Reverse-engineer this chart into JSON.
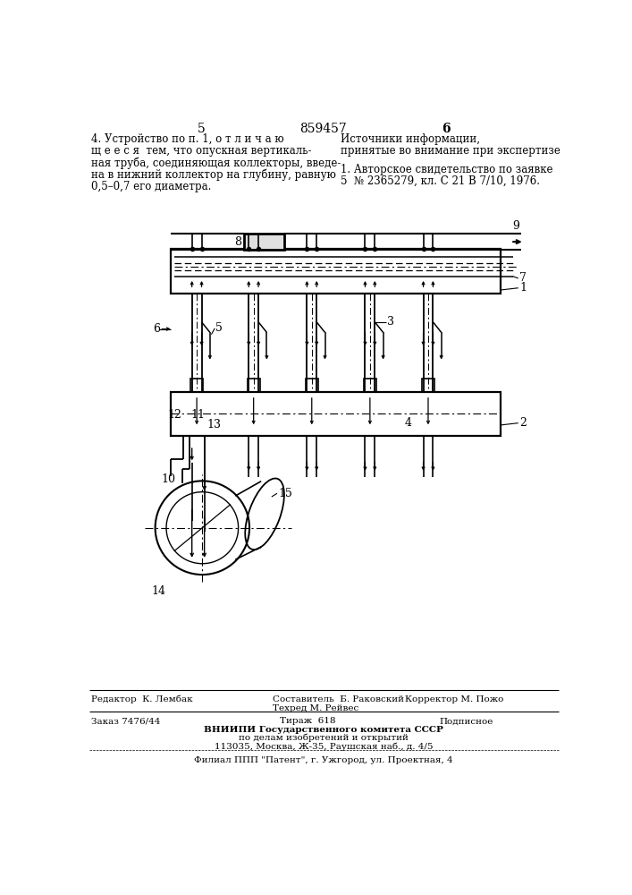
{
  "bg_color": "#ffffff",
  "line_color": "#000000",
  "page_left": "5",
  "page_center": "859457",
  "page_right": "6",
  "left_text": [
    "4. Устройство по п. 1, о т л и ч а ю",
    "щ е е с я  тем, что опускная вертикаль-",
    "ная труба, соединяющая коллекторы, введе-",
    "на в нижний коллектор на глубину, равную",
    "0,5–0,7 его диаметра."
  ],
  "right_title": "Источники информации,",
  "right_subtitle": "принятые во внимание при экспертизе",
  "right_body": [
    "1. Авторское свидетельство по заявке",
    "5  № 2365279, кл. С 21 В 7/10, 1976."
  ],
  "editor_line": "Редактор  К. Лембак",
  "compiler_line": "Составитель  Б. Раковский",
  "techred_line": "Техред М. Рейвес",
  "corrector_line": "Корректор М. Пожо",
  "order_line": "Заказ 7476/44",
  "tirazh_line": "Тираж  618",
  "podpisnoe": "Подписное",
  "vniipи_line": "ВНИИПИ Государственного комитета СССР",
  "dela_line": "по делам изобретений и открытий",
  "address_line": "113035, Москва, Ж-35, Раушская наб., д. 4/5",
  "filial_line": "Филиал ППП \"Патент\", г. Ужгород, ул. Проектная, 4"
}
